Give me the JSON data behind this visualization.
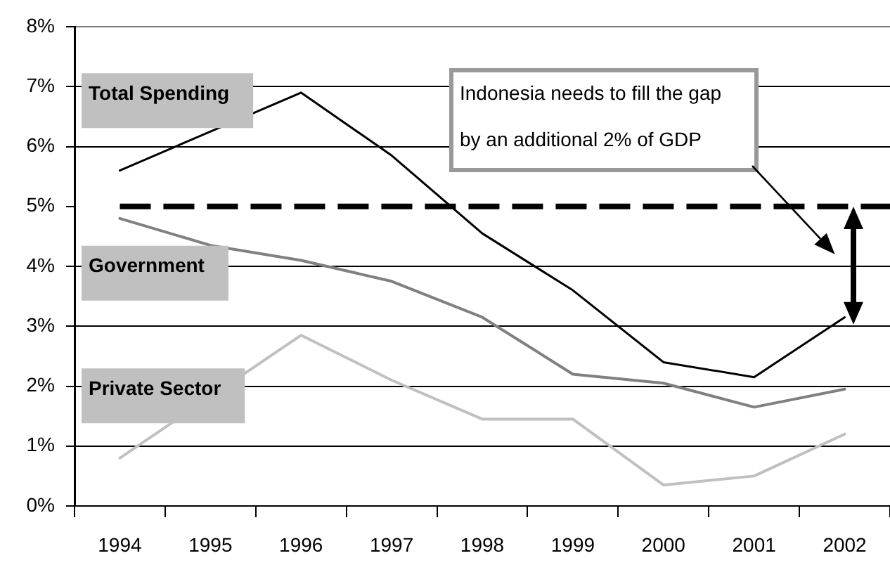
{
  "chart_data": {
    "type": "line",
    "categories": [
      "1994",
      "1995",
      "1996",
      "1997",
      "1998",
      "1999",
      "2000",
      "2001",
      "2002"
    ],
    "series": [
      {
        "name": "Total Spending",
        "color": "#000000",
        "values": [
          5.6,
          null,
          6.9,
          5.85,
          4.55,
          3.6,
          2.4,
          2.15,
          3.15
        ]
      },
      {
        "name": "Government",
        "color": "#808080",
        "values": [
          4.8,
          4.35,
          4.1,
          3.75,
          3.15,
          2.2,
          2.05,
          1.65,
          1.95
        ]
      },
      {
        "name": "Private Sector",
        "color": "#c0c0c0",
        "values": [
          0.8,
          null,
          2.85,
          2.1,
          1.45,
          1.45,
          0.35,
          0.5,
          1.2
        ]
      }
    ],
    "ylim": [
      0,
      8
    ],
    "yticks": [
      {
        "value": 0,
        "label": "0%"
      },
      {
        "value": 1,
        "label": "1%"
      },
      {
        "value": 2,
        "label": "2%"
      },
      {
        "value": 3,
        "label": "3%"
      },
      {
        "value": 4,
        "label": "4%"
      },
      {
        "value": 5,
        "label": "5%"
      },
      {
        "value": 6,
        "label": "6%"
      },
      {
        "value": 7,
        "label": "7%"
      },
      {
        "value": 8,
        "label": "8%"
      }
    ],
    "grid": "y",
    "marker": "none",
    "ref_lines": [
      {
        "axis": "y",
        "value": 5,
        "color": "#000000",
        "line_style": "dashed"
      }
    ],
    "annotations": [
      "Indonesia needs to fill the gap by an additional 2% of GDP"
    ]
  }
}
